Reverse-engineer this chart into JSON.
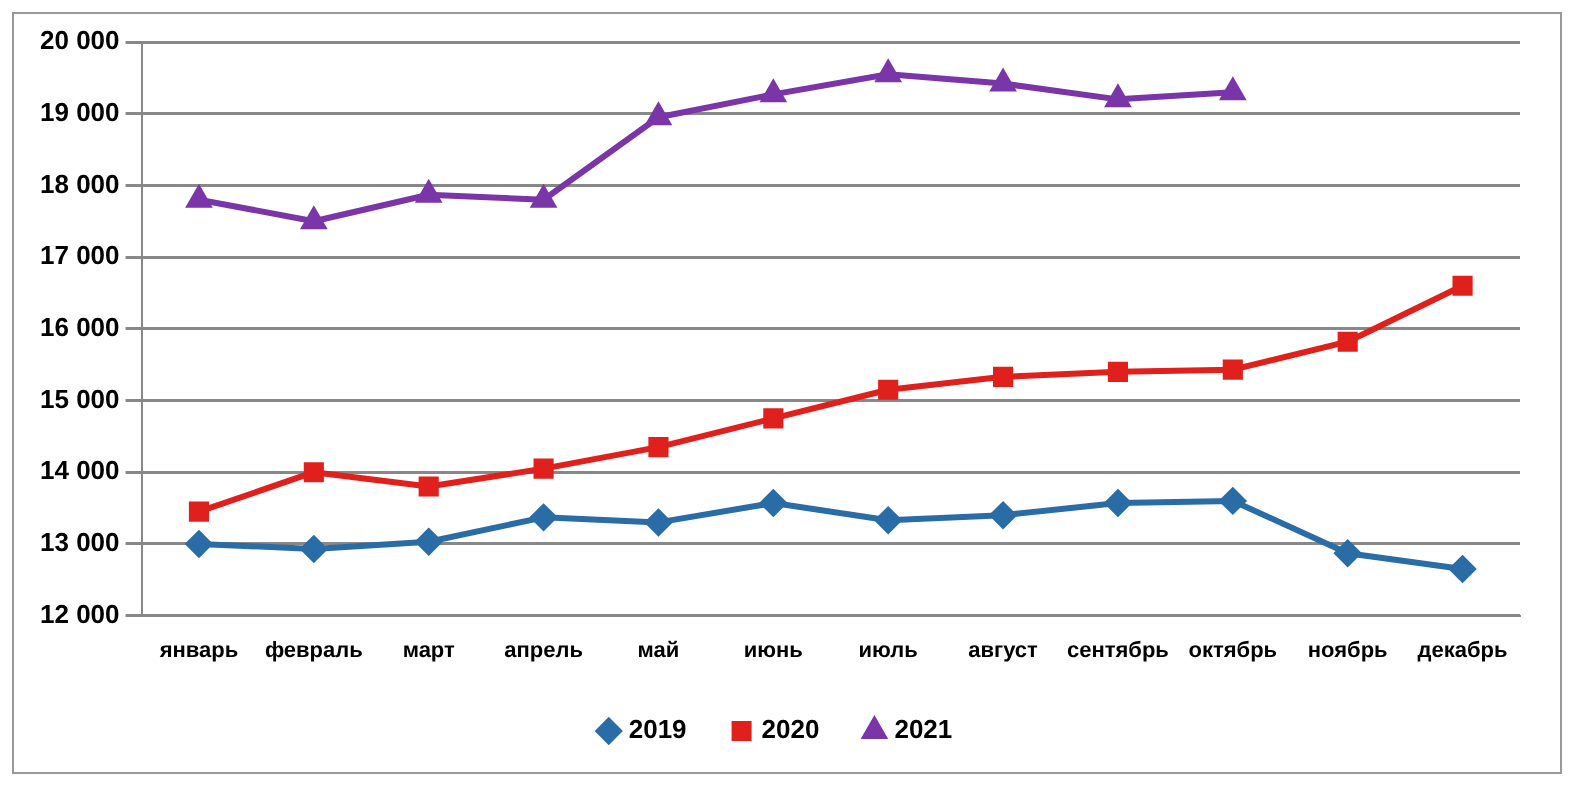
{
  "chart_data": {
    "type": "line",
    "categories": [
      "январь",
      "февраль",
      "март",
      "апрель",
      "май",
      "июнь",
      "июль",
      "август",
      "сентябрь",
      "октябрь",
      "ноябрь",
      "декабрь"
    ],
    "series": [
      {
        "name": "2019",
        "color": "#2a6ca6",
        "marker": "diamond",
        "values": [
          13000,
          12930,
          13030,
          13370,
          13300,
          13570,
          13330,
          13400,
          13570,
          13600,
          12870,
          12650
        ]
      },
      {
        "name": "2020",
        "color": "#e0201c",
        "marker": "square",
        "values": [
          13450,
          14000,
          13800,
          14050,
          14350,
          14750,
          15150,
          15330,
          15400,
          15430,
          15820,
          16600
        ]
      },
      {
        "name": "2021",
        "color": "#7a35a8",
        "marker": "triangle",
        "values": [
          17800,
          17500,
          17870,
          17800,
          18950,
          19270,
          19550,
          19420,
          19200,
          19300,
          null,
          null
        ]
      }
    ],
    "ylim": [
      12000,
      20000
    ],
    "yticks": [
      {
        "value": 12000,
        "label": "12 000"
      },
      {
        "value": 13000,
        "label": "13 000"
      },
      {
        "value": 14000,
        "label": "14 000"
      },
      {
        "value": 15000,
        "label": "15 000"
      },
      {
        "value": 16000,
        "label": "16 000"
      },
      {
        "value": 17000,
        "label": "17 000"
      },
      {
        "value": 18000,
        "label": "18 000"
      },
      {
        "value": 19000,
        "label": "19 000"
      },
      {
        "value": 20000,
        "label": "20 000"
      }
    ],
    "grid": "y",
    "legend": "bottom",
    "line_style": "solid"
  }
}
